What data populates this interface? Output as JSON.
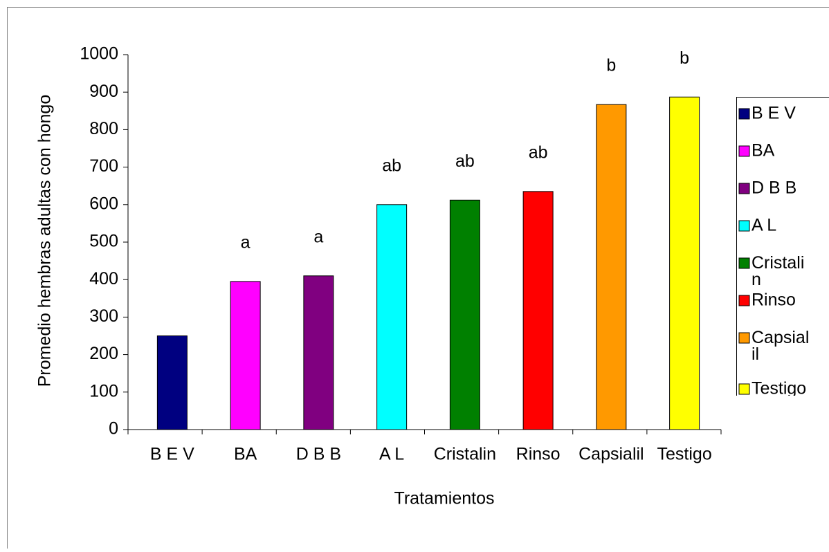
{
  "chart_data": {
    "type": "bar",
    "x_label": "Tratamientos",
    "y_label": "Promedio hembras adultas con hongo",
    "categories": [
      "B E V",
      "BA",
      "D B B",
      "A L",
      "Cristalin",
      "Rinso",
      "Capsialil",
      "Testigo"
    ],
    "values": [
      250,
      395,
      410,
      600,
      612,
      635,
      867,
      887
    ],
    "colors": [
      "#000080",
      "#ff00ff",
      "#800080",
      "#00ffff",
      "#008000",
      "#ff0000",
      "#ff9900",
      "#ffff00"
    ],
    "annotations": [
      null,
      "a",
      "a",
      "ab",
      "ab",
      "ab",
      "b",
      "b"
    ],
    "ylim": [
      0,
      1000
    ],
    "yticks": [
      0,
      100,
      200,
      300,
      400,
      500,
      600,
      700,
      800,
      900,
      1000
    ],
    "legend": "right"
  }
}
